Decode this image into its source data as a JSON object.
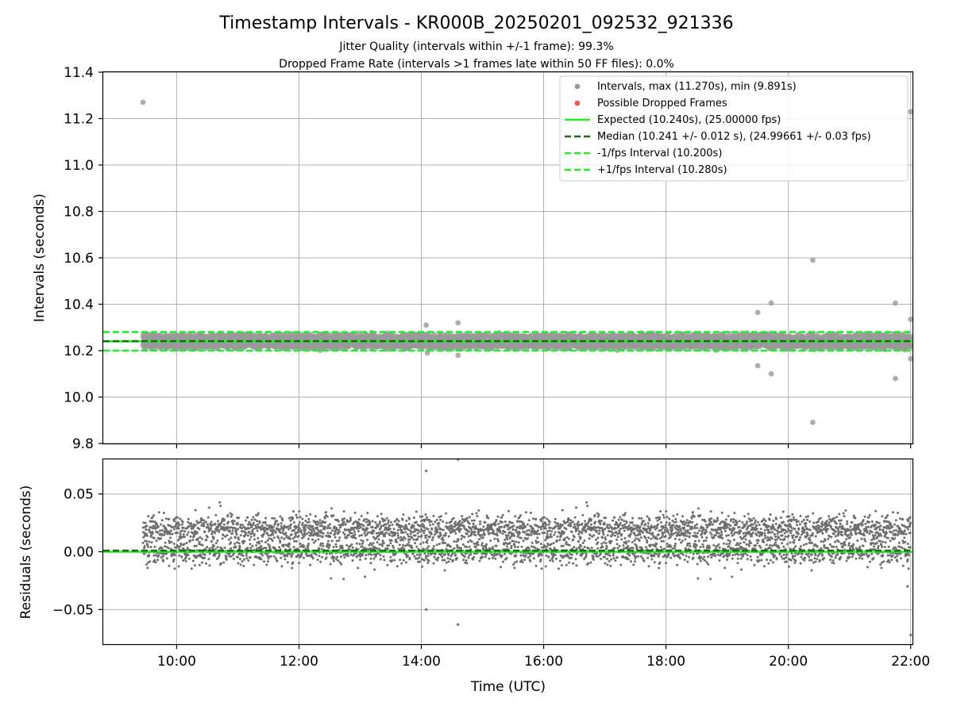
{
  "figure": {
    "title": "Timestamp Intervals - KR000B_20250201_092532_921336",
    "subtitle_line1": "Jitter Quality (intervals within +/-1 frame): 99.3%",
    "subtitle_line2": "Dropped Frame Rate (intervals >1 frames late within 50 FF files): 0.0%"
  },
  "colors": {
    "intervals": "#999999",
    "dropped": "#f05a50",
    "expected": "#22ee22",
    "median": "#1a6b1a",
    "bound": "#22ee22",
    "residual": "#6e6e6e",
    "grid": "#b0b0b0"
  },
  "chart_data": [
    {
      "type": "scatter",
      "panel": "intervals",
      "xlabel": "",
      "ylabel": "Intervals (seconds)",
      "xlim": [
        8.8,
        22.03
      ],
      "ylim": [
        9.8,
        11.4
      ],
      "x_tick_values": [
        10,
        12,
        14,
        16,
        18,
        20,
        22
      ],
      "y_ticks": [
        "9.8",
        "10.0",
        "10.2",
        "10.4",
        "10.6",
        "10.8",
        "11.0",
        "11.2",
        "11.4"
      ],
      "grid": true,
      "legend_position": "top-right",
      "series_start": 9.45,
      "series_end": 22.0,
      "point_count": 4340,
      "series": [
        {
          "name": "Intervals, max (11.270s), min (9.891s)",
          "kind": "scatter",
          "color": "#999999"
        },
        {
          "name": "Possible Dropped Frames",
          "kind": "scatter",
          "color": "#f05a50",
          "values": []
        },
        {
          "name": "Expected (10.240s), (25.00000 fps)",
          "kind": "hline",
          "value": 10.24,
          "style": "solid",
          "color": "#22ee22"
        },
        {
          "name": "Median (10.241 +/- 0.012 s), (24.99661 +/- 0.03 fps)",
          "kind": "hline",
          "value": 10.241,
          "style": "dashed",
          "color": "#1a6b1a"
        },
        {
          "name": "-1/fps Interval (10.200s)",
          "kind": "hline",
          "value": 10.2,
          "style": "dashed",
          "color": "#22ee22"
        },
        {
          "name": "+1/fps Interval (10.280s)",
          "kind": "hline",
          "value": 10.28,
          "style": "dashed",
          "color": "#22ee22"
        }
      ],
      "typical_values": [
        10.22,
        10.24,
        10.26
      ],
      "outliers": [
        {
          "x": 9.45,
          "y": 11.27
        },
        {
          "x": 14.08,
          "y": 10.31
        },
        {
          "x": 14.1,
          "y": 10.19
        },
        {
          "x": 14.6,
          "y": 10.32
        },
        {
          "x": 14.6,
          "y": 10.18
        },
        {
          "x": 19.5,
          "y": 10.365
        },
        {
          "x": 19.5,
          "y": 10.135
        },
        {
          "x": 19.72,
          "y": 10.405
        },
        {
          "x": 19.72,
          "y": 10.1
        },
        {
          "x": 20.4,
          "y": 10.59
        },
        {
          "x": 20.4,
          "y": 9.891
        },
        {
          "x": 21.75,
          "y": 10.405
        },
        {
          "x": 21.75,
          "y": 10.08
        },
        {
          "x": 22.0,
          "y": 10.335
        },
        {
          "x": 22.0,
          "y": 10.165
        },
        {
          "x": 22.0,
          "y": 11.23
        }
      ]
    },
    {
      "type": "scatter",
      "panel": "residuals",
      "xlabel": "Time (UTC)",
      "ylabel": "Residuals (seconds)",
      "xlim": [
        8.8,
        22.03
      ],
      "ylim": [
        -0.08,
        0.08
      ],
      "x_ticks": [
        "10:00",
        "12:00",
        "14:00",
        "16:00",
        "18:00",
        "20:00",
        "22:00"
      ],
      "x_tick_values": [
        10,
        12,
        14,
        16,
        18,
        20,
        22
      ],
      "y_ticks": [
        "−0.05",
        "0.00",
        "0.05"
      ],
      "y_tick_values": [
        -0.05,
        0.0,
        0.05
      ],
      "grid": true,
      "reference_lines": [
        {
          "value": 0.0,
          "style": "solid",
          "color": "#22ee22"
        },
        {
          "value": 0.001,
          "style": "dashed",
          "color": "#1a6b1a"
        }
      ],
      "series_start": 9.45,
      "series_end": 22.0,
      "point_count": 4340,
      "typical_values": [
        0.0,
        0.02
      ],
      "outliers": [
        {
          "x": 14.08,
          "y": 0.07
        },
        {
          "x": 14.08,
          "y": -0.05
        },
        {
          "x": 14.6,
          "y": -0.063
        },
        {
          "x": 14.6,
          "y": 0.08
        },
        {
          "x": 22.0,
          "y": -0.072
        },
        {
          "x": 21.95,
          "y": -0.03
        }
      ]
    }
  ]
}
